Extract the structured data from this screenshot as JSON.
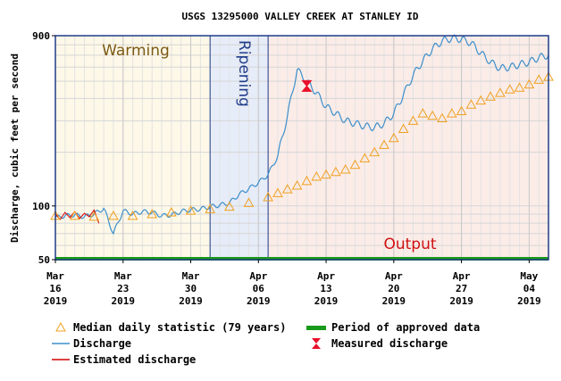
{
  "chart_data": {
    "type": "line",
    "title": "USGS 13295000 VALLEY CREEK AT STANLEY ID",
    "ylabel": "Discharge, cubic feet per second",
    "xlabel": "",
    "y_scale": "log",
    "ylim": [
      50,
      900
    ],
    "yticks": [
      {
        "value": 900,
        "label": "900"
      },
      {
        "value": 100,
        "label": "100"
      },
      {
        "value": 50,
        "label": "50"
      }
    ],
    "xlim": [
      "2019-03-16",
      "2019-05-06"
    ],
    "xticks": [
      {
        "date": "2019-03-16",
        "line1": "Mar",
        "line2": "16",
        "line3": "2019"
      },
      {
        "date": "2019-03-23",
        "line1": "Mar",
        "line2": "23",
        "line3": "2019"
      },
      {
        "date": "2019-03-30",
        "line1": "Mar",
        "line2": "30",
        "line3": "2019"
      },
      {
        "date": "2019-04-06",
        "line1": "Apr",
        "line2": "06",
        "line3": "2019"
      },
      {
        "date": "2019-04-13",
        "line1": "Apr",
        "line2": "13",
        "line3": "2019"
      },
      {
        "date": "2019-04-20",
        "line1": "Apr",
        "line2": "20",
        "line3": "2019"
      },
      {
        "date": "2019-04-27",
        "line1": "Apr",
        "line2": "27",
        "line3": "2019"
      },
      {
        "date": "2019-05-04",
        "line1": "May",
        "line2": "04",
        "line3": "2019"
      }
    ],
    "grid": true,
    "annotations": [
      {
        "label": "Warming",
        "start": "2019-03-16",
        "end": "2019-04-01",
        "color": "#fdf8e8",
        "text_color": "#7b5a14"
      },
      {
        "label": "Ripening",
        "start": "2019-04-01",
        "end": "2019-04-07",
        "color": "#e6ecf8",
        "text_color": "#1f3c88"
      },
      {
        "label": "Output",
        "start": "2019-04-07",
        "end": "2019-05-06",
        "color": "#fbece8",
        "text_color": "#d01010"
      }
    ],
    "series": [
      {
        "name": "Discharge",
        "color": "#3d8fcb",
        "points": [
          [
            "2019-03-16",
            86
          ],
          [
            "2019-03-17",
            88
          ],
          [
            "2019-03-18",
            89
          ],
          [
            "2019-03-19",
            87
          ],
          [
            "2019-03-20",
            90
          ],
          [
            "2019-03-21",
            97
          ],
          [
            "2019-03-22",
            70
          ],
          [
            "2019-03-23",
            94
          ],
          [
            "2019-03-24",
            90
          ],
          [
            "2019-03-25",
            93
          ],
          [
            "2019-03-26",
            92
          ],
          [
            "2019-03-27",
            88
          ],
          [
            "2019-03-28",
            89
          ],
          [
            "2019-03-29",
            93
          ],
          [
            "2019-03-30",
            95
          ],
          [
            "2019-03-31",
            96
          ],
          [
            "2019-04-01",
            99
          ],
          [
            "2019-04-02",
            101
          ],
          [
            "2019-04-03",
            104
          ],
          [
            "2019-04-04",
            116
          ],
          [
            "2019-04-05",
            125
          ],
          [
            "2019-04-06",
            135
          ],
          [
            "2019-04-07",
            150
          ],
          [
            "2019-04-08",
            190
          ],
          [
            "2019-04-09",
            320
          ],
          [
            "2019-04-10",
            580
          ],
          [
            "2019-04-11",
            500
          ],
          [
            "2019-04-12",
            430
          ],
          [
            "2019-04-13",
            360
          ],
          [
            "2019-04-14",
            330
          ],
          [
            "2019-04-15",
            300
          ],
          [
            "2019-04-16",
            290
          ],
          [
            "2019-04-17",
            280
          ],
          [
            "2019-04-18",
            275
          ],
          [
            "2019-04-19",
            290
          ],
          [
            "2019-04-20",
            330
          ],
          [
            "2019-04-21",
            420
          ],
          [
            "2019-04-22",
            540
          ],
          [
            "2019-04-23",
            650
          ],
          [
            "2019-04-24",
            760
          ],
          [
            "2019-04-25",
            840
          ],
          [
            "2019-04-26",
            870
          ],
          [
            "2019-04-27",
            860
          ],
          [
            "2019-04-28",
            820
          ],
          [
            "2019-04-29",
            720
          ],
          [
            "2019-04-30",
            640
          ],
          [
            "2019-05-01",
            590
          ],
          [
            "2019-05-02",
            600
          ],
          [
            "2019-05-03",
            620
          ],
          [
            "2019-05-04",
            640
          ],
          [
            "2019-05-05",
            680
          ],
          [
            "2019-05-06",
            700
          ]
        ]
      },
      {
        "name": "Median daily statistic (79 years)",
        "color": "#f0a020",
        "points": [
          [
            "2019-03-16",
            88
          ],
          [
            "2019-03-18",
            88
          ],
          [
            "2019-03-20",
            87
          ],
          [
            "2019-03-22",
            88
          ],
          [
            "2019-03-24",
            88
          ],
          [
            "2019-03-26",
            90
          ],
          [
            "2019-03-28",
            92
          ],
          [
            "2019-03-30",
            94
          ],
          [
            "2019-04-01",
            96
          ],
          [
            "2019-04-03",
            99
          ],
          [
            "2019-04-05",
            104
          ],
          [
            "2019-04-07",
            112
          ],
          [
            "2019-04-08",
            118
          ],
          [
            "2019-04-09",
            124
          ],
          [
            "2019-04-10",
            130
          ],
          [
            "2019-04-11",
            138
          ],
          [
            "2019-04-12",
            146
          ],
          [
            "2019-04-13",
            150
          ],
          [
            "2019-04-14",
            155
          ],
          [
            "2019-04-15",
            160
          ],
          [
            "2019-04-16",
            170
          ],
          [
            "2019-04-17",
            185
          ],
          [
            "2019-04-18",
            200
          ],
          [
            "2019-04-19",
            220
          ],
          [
            "2019-04-20",
            240
          ],
          [
            "2019-04-21",
            270
          ],
          [
            "2019-04-22",
            300
          ],
          [
            "2019-04-23",
            330
          ],
          [
            "2019-04-24",
            320
          ],
          [
            "2019-04-25",
            310
          ],
          [
            "2019-04-26",
            330
          ],
          [
            "2019-04-27",
            340
          ],
          [
            "2019-04-28",
            370
          ],
          [
            "2019-04-29",
            390
          ],
          [
            "2019-04-30",
            410
          ],
          [
            "2019-05-01",
            430
          ],
          [
            "2019-05-02",
            450
          ],
          [
            "2019-05-03",
            460
          ],
          [
            "2019-05-04",
            480
          ],
          [
            "2019-05-05",
            510
          ],
          [
            "2019-05-06",
            530
          ]
        ]
      },
      {
        "name": "Estimated discharge",
        "color": "#d40000",
        "points": [
          [
            "2019-03-16",
            90
          ],
          [
            "2019-03-16.5",
            84
          ],
          [
            "2019-03-17",
            92
          ],
          [
            "2019-03-17.5",
            86
          ],
          [
            "2019-03-18",
            93
          ],
          [
            "2019-03-18.5",
            85
          ],
          [
            "2019-03-19",
            91
          ],
          [
            "2019-03-19.5",
            87
          ],
          [
            "2019-03-20",
            95
          ],
          [
            "2019-03-20.5",
            80
          ]
        ]
      }
    ],
    "measured_discharge": [
      {
        "date": "2019-04-11",
        "value": 470
      }
    ],
    "approved_period": {
      "start": "2019-03-16",
      "end": "2019-05-06"
    },
    "legend": {
      "placement": "bottom",
      "items": [
        {
          "label": "Median daily statistic (79 years)",
          "marker": "triangle",
          "color": "#f0a020"
        },
        {
          "label": "Period of approved data",
          "marker": "bar",
          "color": "#1a9a1a"
        },
        {
          "label": "Discharge",
          "marker": "line",
          "color": "#3d8fcb"
        },
        {
          "label": "Measured discharge",
          "marker": "bowtie",
          "color": "#e8102a"
        },
        {
          "label": "Estimated discharge",
          "marker": "line",
          "color": "#d40000"
        }
      ]
    }
  }
}
